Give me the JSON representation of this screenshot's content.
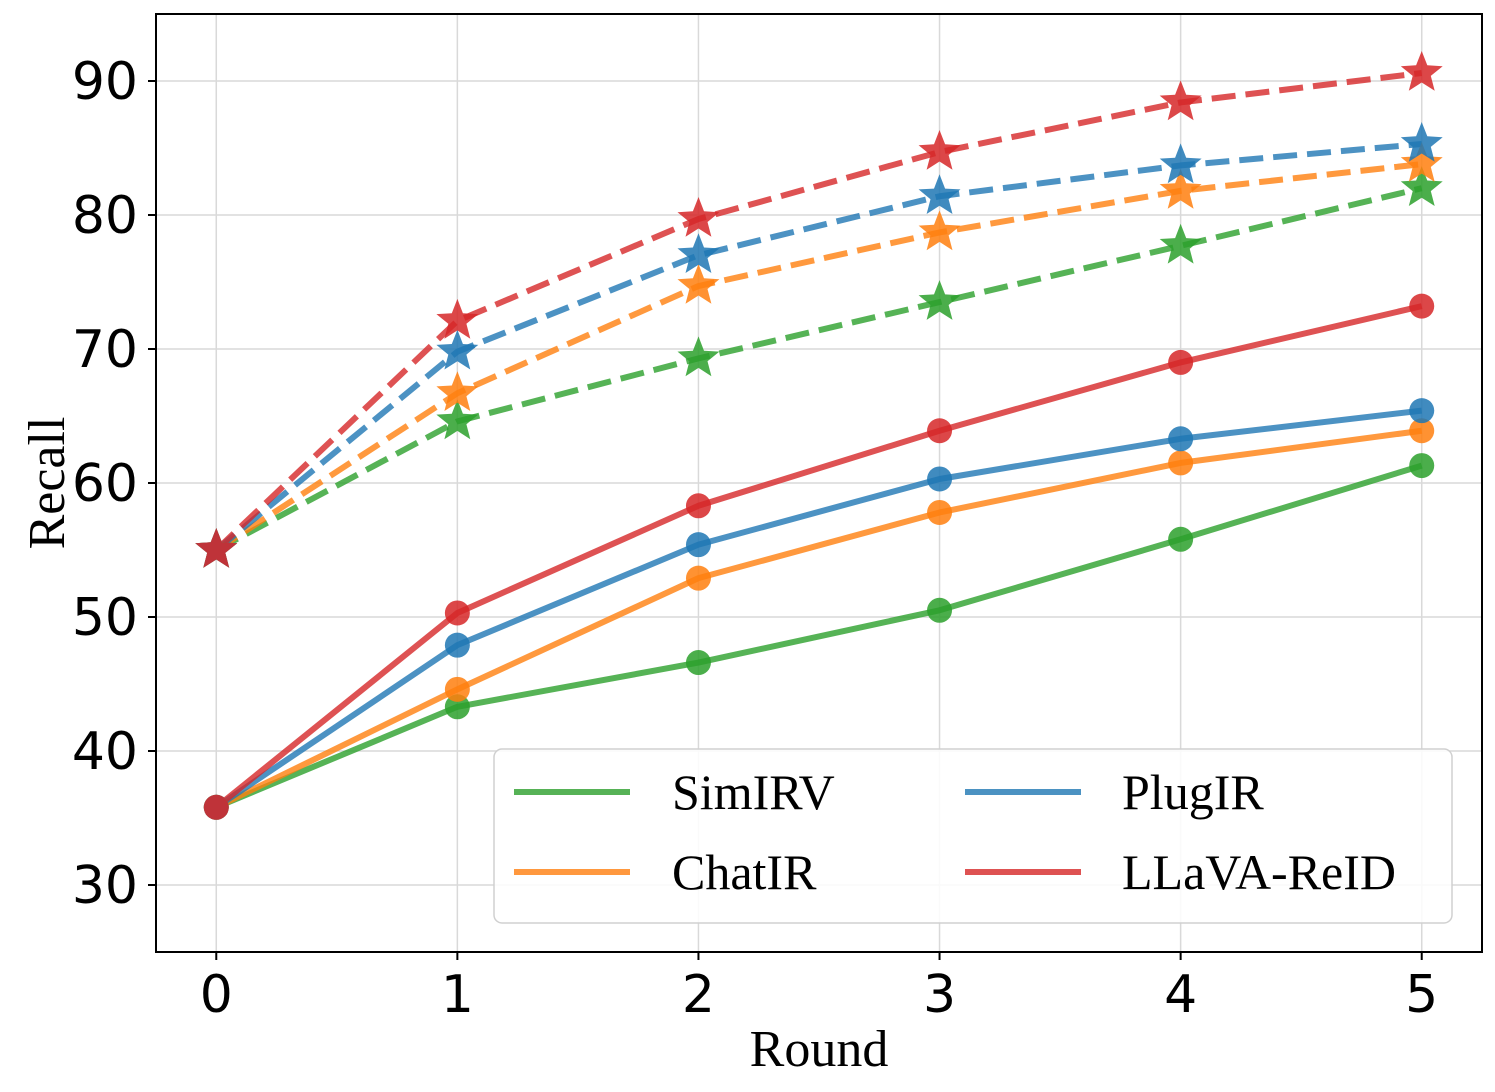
{
  "chart_data": {
    "type": "line",
    "title": "",
    "xlabel": "Round",
    "ylabel": "Recall",
    "x": [
      0,
      1,
      2,
      3,
      4,
      5
    ],
    "xlim": [
      -0.25,
      5.25
    ],
    "ylim": [
      25,
      95
    ],
    "yticks": [
      30,
      40,
      50,
      60,
      70,
      80,
      90
    ],
    "grid": true,
    "legend_position": "lower-right",
    "series": [
      {
        "name": "SimIRV",
        "color": "#2ca02c",
        "style": "solid",
        "marker": "circle",
        "legend": true,
        "values": [
          35.8,
          43.3,
          46.6,
          50.5,
          55.8,
          61.3
        ]
      },
      {
        "name": "ChatIR",
        "color": "#ff7f0e",
        "style": "solid",
        "marker": "circle",
        "legend": true,
        "values": [
          35.8,
          44.6,
          52.9,
          57.8,
          61.5,
          63.9
        ]
      },
      {
        "name": "PlugIR",
        "color": "#1f77b4",
        "style": "solid",
        "marker": "circle",
        "legend": true,
        "values": [
          35.8,
          47.9,
          55.4,
          60.3,
          63.3,
          65.4
        ]
      },
      {
        "name": "LLaVA-ReID",
        "color": "#d62728",
        "style": "solid",
        "marker": "circle",
        "legend": true,
        "values": [
          35.8,
          50.3,
          58.3,
          63.9,
          69.0,
          73.2
        ]
      },
      {
        "name": "SimIRV (dashed)",
        "color": "#2ca02c",
        "style": "dashed",
        "marker": "star",
        "legend": false,
        "values": [
          55.0,
          64.6,
          69.3,
          73.5,
          77.7,
          82.0
        ]
      },
      {
        "name": "ChatIR (dashed)",
        "color": "#ff7f0e",
        "style": "dashed",
        "marker": "star",
        "legend": false,
        "values": [
          55.0,
          66.7,
          74.7,
          78.7,
          81.8,
          83.8
        ]
      },
      {
        "name": "PlugIR (dashed)",
        "color": "#1f77b4",
        "style": "dashed",
        "marker": "star",
        "legend": false,
        "values": [
          55.0,
          69.8,
          77.0,
          81.4,
          83.7,
          85.3
        ]
      },
      {
        "name": "LLaVA-ReID (dashed)",
        "color": "#d62728",
        "style": "dashed",
        "marker": "star",
        "legend": false,
        "values": [
          55.0,
          72.1,
          79.7,
          84.7,
          88.4,
          90.6
        ]
      }
    ]
  }
}
